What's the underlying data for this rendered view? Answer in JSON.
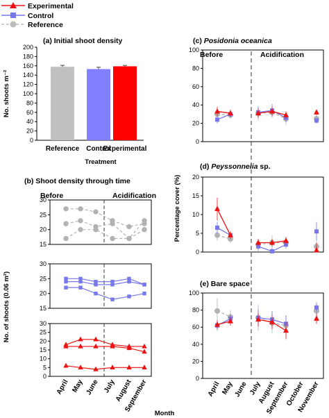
{
  "legend": [
    {
      "name": "Experimental",
      "color": "#ee1111",
      "marker": "triangle"
    },
    {
      "name": "Control",
      "color": "#7777ee",
      "marker": "square"
    },
    {
      "name": "Reference",
      "color": "#bbbbbb",
      "marker": "circle"
    }
  ],
  "colors": {
    "experimental": "#ee1111",
    "control": "#7777ee",
    "reference": "#b3b3b3",
    "bar_reference": "#c0c0c0",
    "bar_control": "#7f7fff",
    "bar_experimental": "#ff0000"
  },
  "panel_a": {
    "title": "(a) Initial shoot density",
    "ylabel": "No. shoots m⁻²",
    "xlabel": "Treatment"
  },
  "panel_b": {
    "title": "(b) Shoot density through time",
    "phase_before": "Before",
    "phase_after": "Acidification",
    "ylabel": "No. of shoots (0.06 m²)"
  },
  "panel_c": {
    "title_prefix": "(c) ",
    "title_species": "Posidonia oceanica",
    "phase_before": "Before",
    "phase_after": "Acidification"
  },
  "panel_d": {
    "title_prefix": "(d) ",
    "title_species": "Peyssonnelia",
    "title_suffix": " sp."
  },
  "panel_e": {
    "title": "(e) Bare space"
  },
  "right_ylabel": "Percentage cover (%)",
  "xlabel": "Month",
  "chart_data": [
    {
      "type": "bar",
      "panel": "a",
      "title": "(a) Initial shoot density",
      "categories": [
        "Reference",
        "Control",
        "Experimental"
      ],
      "values": [
        158,
        153,
        159
      ],
      "errors": [
        3,
        4,
        2
      ],
      "ylabel": "No. shoots m⁻²",
      "xlabel": "Treatment",
      "ylim": [
        0,
        200
      ],
      "yticks": [
        0,
        20,
        40,
        60,
        80,
        100,
        120,
        140,
        160,
        180,
        200
      ]
    },
    {
      "type": "line",
      "panel": "b-reference",
      "title": "(b) Shoot density through time",
      "x": [
        "April",
        "May",
        "June",
        "July",
        "August",
        "September"
      ],
      "ylim": [
        15,
        30
      ],
      "yticks": [
        15,
        20,
        25,
        30
      ],
      "series": [
        {
          "values": [
            27,
            27,
            26,
            23,
            21,
            22
          ]
        },
        {
          "values": [
            22,
            23,
            21,
            22,
            17,
            23
          ]
        },
        {
          "values": [
            17,
            20,
            20,
            17,
            17,
            20
          ]
        }
      ]
    },
    {
      "type": "line",
      "panel": "b-control",
      "x": [
        "April",
        "May",
        "June",
        "July",
        "August",
        "September"
      ],
      "ylim": [
        15,
        30
      ],
      "yticks": [
        15,
        20,
        25,
        30
      ],
      "series": [
        {
          "values": [
            25,
            25,
            24,
            24,
            25,
            23
          ]
        },
        {
          "values": [
            24,
            24,
            23,
            23,
            24,
            23
          ]
        },
        {
          "values": [
            22,
            22,
            20,
            18,
            19,
            20
          ]
        }
      ]
    },
    {
      "type": "line",
      "panel": "b-experimental",
      "x": [
        "April",
        "May",
        "June",
        "July",
        "August",
        "September"
      ],
      "ylim": [
        0,
        30
      ],
      "yticks": [
        0,
        5,
        10,
        15,
        20,
        25,
        30
      ],
      "series": [
        {
          "values": [
            18,
            21,
            21,
            18,
            17,
            17
          ]
        },
        {
          "values": [
            17,
            17,
            17,
            17,
            16,
            14
          ]
        },
        {
          "values": [
            6,
            5,
            4,
            5,
            5,
            5
          ]
        }
      ]
    },
    {
      "type": "line",
      "panel": "c",
      "title": "(c) Posidonia oceanica",
      "x": [
        "April",
        "May",
        "June",
        "July",
        "August",
        "September",
        "October",
        "November"
      ],
      "ylim": [
        0,
        100
      ],
      "yticks": [
        0,
        20,
        40,
        60,
        80,
        100
      ],
      "series": [
        {
          "name": "Experimental",
          "values": [
            33,
            31,
            null,
            31,
            33,
            29,
            null,
            32
          ],
          "errors": [
            5,
            4,
            null,
            5,
            5,
            4,
            null,
            3
          ]
        },
        {
          "name": "Control",
          "values": [
            24,
            30,
            null,
            32,
            34,
            26,
            null,
            23
          ],
          "errors": [
            4,
            3,
            null,
            6,
            7,
            5,
            null,
            3
          ]
        },
        {
          "name": "Reference",
          "values": [
            30,
            29,
            null,
            31,
            32,
            25,
            null,
            25
          ],
          "errors": [
            6,
            4,
            null,
            8,
            6,
            7,
            null,
            5
          ]
        }
      ]
    },
    {
      "type": "line",
      "panel": "d",
      "title": "(d) Peyssonnelia sp.",
      "x": [
        "April",
        "May",
        "June",
        "July",
        "August",
        "September",
        "October",
        "November"
      ],
      "ylim": [
        0,
        20
      ],
      "yticks": [
        0,
        5,
        10,
        15,
        20
      ],
      "series": [
        {
          "name": "Experimental",
          "values": [
            11.5,
            4.5,
            null,
            2.5,
            2.5,
            3,
            null,
            0.5
          ],
          "errors": [
            3,
            1,
            null,
            1,
            1,
            1,
            null,
            2
          ]
        },
        {
          "name": "Control",
          "values": [
            6.5,
            4.5,
            null,
            1.5,
            0.2,
            2,
            null,
            5.5
          ],
          "errors": [
            1.5,
            1,
            null,
            1.2,
            0.8,
            1,
            null,
            2.5
          ]
        },
        {
          "name": "Reference",
          "values": [
            4.5,
            3.5,
            null,
            2,
            2.5,
            2.5,
            null,
            1.5
          ],
          "errors": [
            1.5,
            1,
            null,
            1.5,
            2,
            1.5,
            null,
            1.5
          ]
        }
      ]
    },
    {
      "type": "line",
      "panel": "e",
      "title": "(e) Bare space",
      "x": [
        "April",
        "May",
        "June",
        "July",
        "August",
        "September",
        "October",
        "November"
      ],
      "ylim": [
        0,
        100
      ],
      "yticks": [
        0,
        20,
        40,
        60,
        80,
        100
      ],
      "series": [
        {
          "name": "Experimental",
          "values": [
            63,
            67,
            null,
            69,
            66,
            56,
            null,
            70
          ],
          "errors": [
            5,
            5,
            null,
            8,
            8,
            10,
            null,
            6
          ]
        },
        {
          "name": "Control",
          "values": [
            62,
            70,
            null,
            71,
            69,
            64,
            null,
            83
          ],
          "errors": [
            6,
            5,
            null,
            10,
            10,
            10,
            null,
            6
          ]
        },
        {
          "name": "Reference",
          "values": [
            79,
            72,
            null,
            71,
            65,
            62,
            null,
            79
          ],
          "errors": [
            15,
            8,
            null,
            15,
            12,
            12,
            null,
            10
          ]
        }
      ]
    }
  ]
}
